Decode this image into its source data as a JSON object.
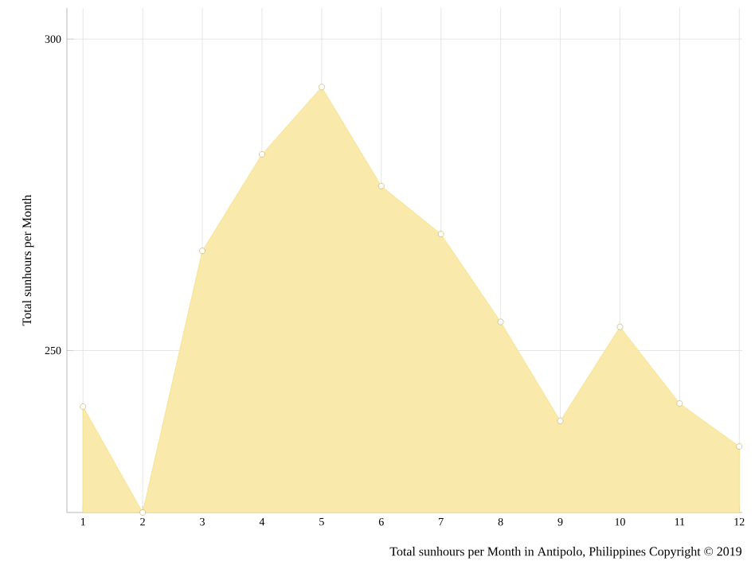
{
  "chart_data": {
    "type": "area",
    "ylabel": "Total sunhours per Month",
    "annotations": [
      "Total sunhours per Month in Antipolo, Philippines Copyright © 2019"
    ],
    "x": [
      1,
      2,
      3,
      4,
      5,
      6,
      7,
      8,
      9,
      10,
      11,
      12
    ],
    "series": [
      {
        "color": "#f7df85",
        "values": [
          241,
          224,
          266,
          281.5,
          292.3,
          276.4,
          268.7,
          254.6,
          238.7,
          253.8,
          241.5,
          234.6
        ]
      }
    ],
    "xlim": [
      0.73,
      12.05
    ],
    "ylim": [
      224,
      305
    ],
    "xticks": [
      1,
      2,
      3,
      4,
      5,
      6,
      7,
      8,
      9,
      10,
      11,
      12
    ],
    "yticks": [
      250,
      300
    ],
    "grid": true,
    "marker": "circle"
  }
}
